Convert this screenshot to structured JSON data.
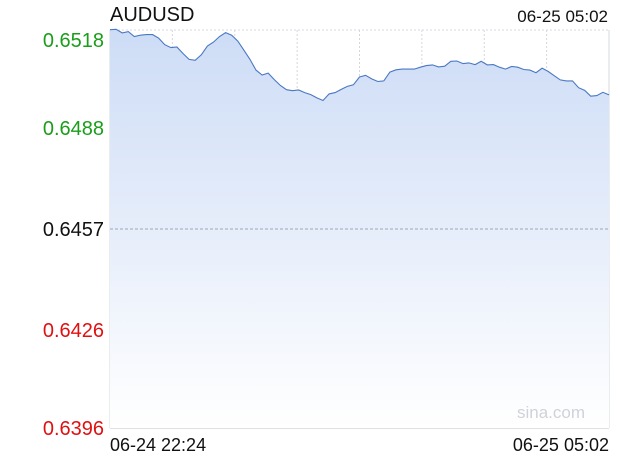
{
  "header": {
    "symbol": "AUDUSD",
    "timestamp": "06-25 05:02"
  },
  "watermark": "sina.com",
  "colors": {
    "line": "#4a78c2",
    "fill_top": "#cddcf6",
    "fill_bottom": "#ffffff",
    "up": "#1a9e1a",
    "neutral": "#111111",
    "down": "#e01010",
    "grid": "#d4d8de"
  },
  "chart_data": {
    "type": "area",
    "title": "AUDUSD",
    "x_start_label": "06-24 22:24",
    "x_end_label": "06-25 05:02",
    "ylim": [
      0.6396,
      0.6518
    ],
    "yticks": [
      {
        "label": "0.6518",
        "value": 0.6518,
        "color": "up"
      },
      {
        "label": "0.6488",
        "value": 0.6488,
        "color": "up"
      },
      {
        "label": "0.6457",
        "value": 0.6457,
        "color": "neutral"
      },
      {
        "label": "0.6426",
        "value": 0.6426,
        "color": "down"
      },
      {
        "label": "0.6396",
        "value": 0.6396,
        "color": "down"
      }
    ],
    "reference_price": 0.6457,
    "grid": true,
    "series": [
      {
        "values": [
          0.65187,
          0.65176,
          0.65168,
          0.65175,
          0.65163,
          0.6517,
          0.6516,
          0.65163,
          0.65155,
          0.65138,
          0.65132,
          0.65122,
          0.65105,
          0.6509,
          0.6509,
          0.6511,
          0.65125,
          0.6514,
          0.6516,
          0.65175,
          0.6517,
          0.6514,
          0.65115,
          0.6509,
          0.6506,
          0.65048,
          0.65042,
          0.65025,
          0.6501,
          0.65,
          0.65,
          0.6499,
          0.64985,
          0.64982,
          0.64975,
          0.6497,
          0.64978,
          0.64985,
          0.64998,
          0.6501,
          0.65018,
          0.6503,
          0.65038,
          0.6503,
          0.65025,
          0.6503,
          0.65045,
          0.65055,
          0.6506,
          0.65063,
          0.65066,
          0.6506,
          0.65068,
          0.65073,
          0.6507,
          0.65075,
          0.65078,
          0.65082,
          0.65077,
          0.65082,
          0.6508,
          0.65078,
          0.6507,
          0.65074,
          0.65069,
          0.65066,
          0.65062,
          0.65063,
          0.65059,
          0.6506,
          0.65055,
          0.65057,
          0.6505,
          0.6504,
          0.6503,
          0.6503,
          0.65018,
          0.65,
          0.64995,
          0.6498,
          0.64985,
          0.64983,
          0.64978
        ]
      }
    ]
  }
}
